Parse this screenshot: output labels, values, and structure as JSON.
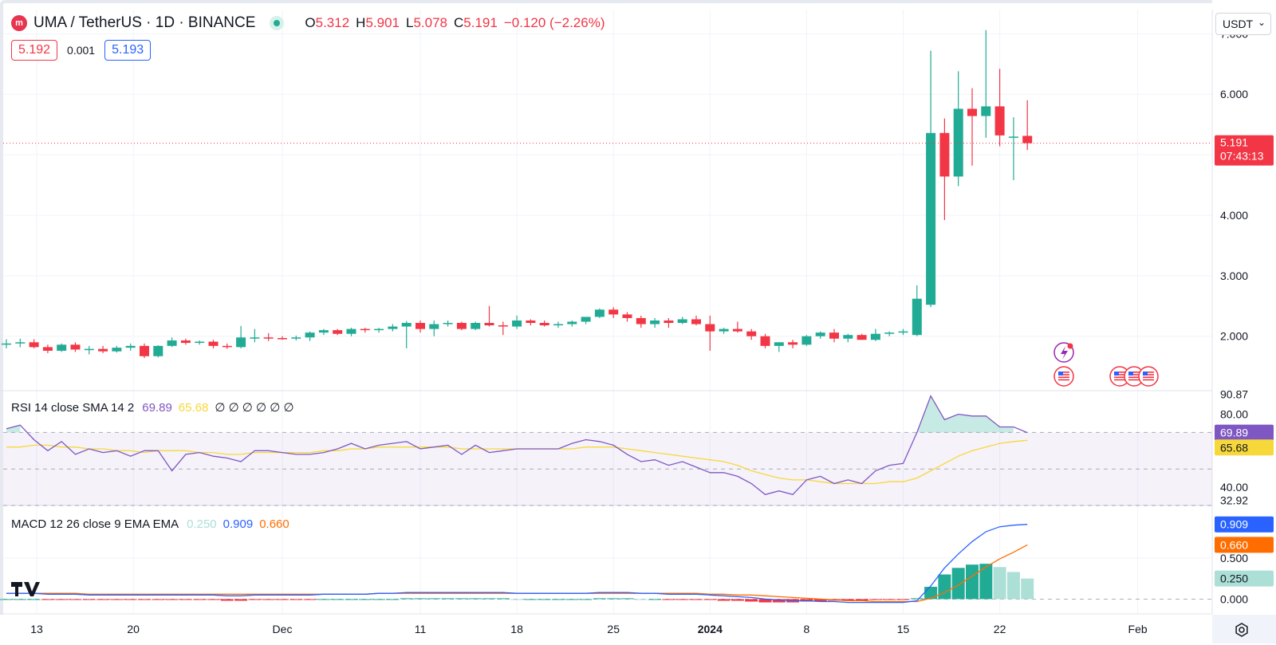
{
  "header": {
    "symbol": "UMA / TetherUS · 1D · BINANCE",
    "ohlc": [
      {
        "label": "O",
        "value": "5.312"
      },
      {
        "label": "H",
        "value": "5.901"
      },
      {
        "label": "L",
        "value": "5.078"
      },
      {
        "label": "C",
        "value": "5.191"
      }
    ],
    "change": "−0.120 (−2.26%)",
    "sell_price": "5.192",
    "spread": "0.001",
    "buy_price": "5.193",
    "currency": "USDT",
    "logo_icon": "uma-logo-icon"
  },
  "colors": {
    "up": "#22ab94",
    "down": "#f23645",
    "rsi": "#7e57c2",
    "rsi_sma": "#f7d83a",
    "macd": "#2962ff",
    "signal": "#ff6d00",
    "hist_pos": "#22ab94",
    "hist_pos_weak": "#acdfd6",
    "hist_neg": "#f23645"
  },
  "rsi": {
    "label": "RSI 14 close SMA 14 2",
    "value": "69.89",
    "sma_value": "65.68",
    "placeholders": "∅ ∅ ∅ ∅ ∅ ∅"
  },
  "macd": {
    "label": "MACD 12 26 close 9 EMA EMA",
    "hist_value": "0.250",
    "macd_value": "0.909",
    "signal_value": "0.660"
  },
  "chart_data": [
    {
      "type": "candlestick",
      "ylim": [
        1.1,
        7.4
      ],
      "y_ticks": [
        "7.000",
        "6.000",
        "5.000",
        "4.000",
        "3.000",
        "2.000"
      ],
      "x_ticks": [
        "13",
        "20",
        "Dec",
        "11",
        "18",
        "25",
        "2024",
        "8",
        "15",
        "22",
        "Feb"
      ],
      "last_price": "5.191",
      "countdown": "07:43:13",
      "candles": [
        [
          1.86,
          1.95,
          1.8,
          1.88
        ],
        [
          1.88,
          1.96,
          1.82,
          1.9
        ],
        [
          1.9,
          1.95,
          1.8,
          1.82
        ],
        [
          1.82,
          1.86,
          1.72,
          1.76
        ],
        [
          1.76,
          1.88,
          1.74,
          1.86
        ],
        [
          1.86,
          1.9,
          1.74,
          1.78
        ],
        [
          1.78,
          1.84,
          1.7,
          1.79
        ],
        [
          1.79,
          1.84,
          1.72,
          1.75
        ],
        [
          1.75,
          1.84,
          1.73,
          1.81
        ],
        [
          1.81,
          1.88,
          1.76,
          1.84
        ],
        [
          1.84,
          1.88,
          1.64,
          1.67
        ],
        [
          1.67,
          1.85,
          1.65,
          1.84
        ],
        [
          1.84,
          1.98,
          1.82,
          1.93
        ],
        [
          1.93,
          1.96,
          1.86,
          1.89
        ],
        [
          1.89,
          1.93,
          1.86,
          1.91
        ],
        [
          1.91,
          1.94,
          1.8,
          1.84
        ],
        [
          1.84,
          1.88,
          1.79,
          1.82
        ],
        [
          1.82,
          2.17,
          1.8,
          1.98
        ],
        [
          1.98,
          2.12,
          1.9,
          1.98
        ],
        [
          1.98,
          2.05,
          1.92,
          1.97
        ],
        [
          1.97,
          2.0,
          1.94,
          1.96
        ],
        [
          1.96,
          2.01,
          1.93,
          1.98
        ],
        [
          1.98,
          2.08,
          1.92,
          2.06
        ],
        [
          2.06,
          2.12,
          2.02,
          2.1
        ],
        [
          2.1,
          2.12,
          2.02,
          2.04
        ],
        [
          2.04,
          2.14,
          2.0,
          2.12
        ],
        [
          2.12,
          2.14,
          2.06,
          2.1
        ],
        [
          2.1,
          2.14,
          2.06,
          2.12
        ],
        [
          2.12,
          2.2,
          2.08,
          2.16
        ],
        [
          2.16,
          2.25,
          1.8,
          2.22
        ],
        [
          2.22,
          2.26,
          2.06,
          2.12
        ],
        [
          2.12,
          2.26,
          2.0,
          2.2
        ],
        [
          2.2,
          2.26,
          2.16,
          2.22
        ],
        [
          2.22,
          2.24,
          2.1,
          2.12
        ],
        [
          2.12,
          2.24,
          2.1,
          2.22
        ],
        [
          2.22,
          2.5,
          2.16,
          2.18
        ],
        [
          2.18,
          2.24,
          2.02,
          2.16
        ],
        [
          2.16,
          2.34,
          2.12,
          2.26
        ],
        [
          2.26,
          2.28,
          2.18,
          2.22
        ],
        [
          2.22,
          2.26,
          2.16,
          2.18
        ],
        [
          2.18,
          2.24,
          2.14,
          2.2
        ],
        [
          2.2,
          2.26,
          2.16,
          2.24
        ],
        [
          2.24,
          2.32,
          2.2,
          2.32
        ],
        [
          2.32,
          2.46,
          2.3,
          2.44
        ],
        [
          2.44,
          2.48,
          2.3,
          2.36
        ],
        [
          2.36,
          2.4,
          2.24,
          2.3
        ],
        [
          2.3,
          2.34,
          2.14,
          2.2
        ],
        [
          2.2,
          2.3,
          2.14,
          2.26
        ],
        [
          2.26,
          2.3,
          2.14,
          2.22
        ],
        [
          2.22,
          2.32,
          2.2,
          2.28
        ],
        [
          2.28,
          2.34,
          2.18,
          2.2
        ],
        [
          2.2,
          2.34,
          1.76,
          2.08
        ],
        [
          2.08,
          2.14,
          2.04,
          2.12
        ],
        [
          2.12,
          2.24,
          2.06,
          2.08
        ],
        [
          2.08,
          2.12,
          1.94,
          2.0
        ],
        [
          2.0,
          2.04,
          1.8,
          1.84
        ],
        [
          1.84,
          1.9,
          1.74,
          1.9
        ],
        [
          1.9,
          1.94,
          1.8,
          1.86
        ],
        [
          1.86,
          2.02,
          1.84,
          2.0
        ],
        [
          2.0,
          2.08,
          1.96,
          2.06
        ],
        [
          2.06,
          2.12,
          1.9,
          1.96
        ],
        [
          1.96,
          2.04,
          1.9,
          2.02
        ],
        [
          2.02,
          2.04,
          1.94,
          1.94
        ],
        [
          1.94,
          2.12,
          1.92,
          2.04
        ],
        [
          2.04,
          2.08,
          2.0,
          2.06
        ],
        [
          2.06,
          2.12,
          2.02,
          2.08
        ],
        [
          2.02,
          2.84,
          2.0,
          2.62
        ],
        [
          2.52,
          6.72,
          2.48,
          5.36
        ],
        [
          5.36,
          5.6,
          3.92,
          4.64
        ],
        [
          4.64,
          6.38,
          4.48,
          5.76
        ],
        [
          5.76,
          6.1,
          4.82,
          5.64
        ],
        [
          5.64,
          7.06,
          5.28,
          5.8
        ],
        [
          5.8,
          6.42,
          5.14,
          5.32
        ],
        [
          5.3,
          5.62,
          4.58,
          5.3
        ],
        [
          5.312,
          5.901,
          5.078,
          5.191
        ]
      ]
    },
    {
      "type": "line",
      "title": "RSI 14 close SMA 14 2",
      "ylim": [
        30,
        92
      ],
      "y_ticks": [
        "90.87",
        "80.00",
        "40.00",
        "32.92"
      ],
      "bands": [
        70,
        50,
        30
      ],
      "series": [
        {
          "name": "RSI",
          "values": [
            72,
            74,
            66,
            60,
            65,
            58,
            61,
            59,
            60,
            57,
            60,
            60,
            49,
            58,
            59,
            57,
            56,
            54,
            60,
            60,
            59,
            58,
            58,
            59,
            61,
            64,
            61,
            63,
            64,
            65,
            61,
            62,
            63,
            58,
            63,
            59,
            60,
            61,
            61,
            61,
            61,
            64,
            66,
            65,
            63,
            58,
            54,
            55,
            52,
            54,
            51,
            48,
            48,
            46,
            42,
            36,
            38,
            36,
            44,
            46,
            42,
            44,
            42,
            49,
            52,
            53,
            70,
            90,
            77,
            80,
            79,
            79,
            73,
            73,
            69.89
          ]
        },
        {
          "name": "RSI-based MA",
          "values": [
            62,
            62,
            63,
            63,
            62,
            62,
            61,
            61,
            60,
            60,
            59,
            60,
            60,
            60,
            59,
            59,
            58,
            58,
            59,
            59,
            59,
            59,
            59,
            60,
            60,
            61,
            61,
            62,
            62,
            62,
            62,
            62,
            62,
            61,
            61,
            61,
            61,
            61,
            61,
            61,
            61,
            61,
            62,
            62,
            62,
            61,
            60,
            59,
            58,
            57,
            56,
            55,
            54,
            52,
            49,
            47,
            45,
            44,
            44,
            43,
            42,
            42,
            42,
            42,
            43,
            43,
            45,
            49,
            53,
            57,
            60,
            62,
            64,
            65,
            65.68
          ]
        }
      ]
    },
    {
      "type": "line",
      "title": "MACD 12 26 close 9 EMA EMA",
      "ylim": [
        -0.18,
        1.12
      ],
      "y_ticks": [
        "0.500",
        "0.000"
      ],
      "series": [
        {
          "name": "MACD",
          "values": [
            0.07,
            0.07,
            0.07,
            0.06,
            0.06,
            0.06,
            0.05,
            0.05,
            0.05,
            0.05,
            0.05,
            0.05,
            0.05,
            0.05,
            0.05,
            0.05,
            0.04,
            0.04,
            0.05,
            0.05,
            0.05,
            0.05,
            0.05,
            0.06,
            0.06,
            0.06,
            0.06,
            0.07,
            0.07,
            0.08,
            0.08,
            0.08,
            0.08,
            0.08,
            0.08,
            0.08,
            0.08,
            0.07,
            0.07,
            0.07,
            0.07,
            0.07,
            0.07,
            0.08,
            0.08,
            0.08,
            0.07,
            0.07,
            0.06,
            0.06,
            0.06,
            0.05,
            0.04,
            0.03,
            0.02,
            0.0,
            -0.01,
            -0.02,
            -0.02,
            -0.03,
            -0.03,
            -0.04,
            -0.04,
            -0.04,
            -0.04,
            -0.04,
            -0.02,
            0.16,
            0.38,
            0.55,
            0.7,
            0.82,
            0.88,
            0.9,
            0.909
          ]
        },
        {
          "name": "Signal",
          "values": [
            0.07,
            0.07,
            0.07,
            0.07,
            0.07,
            0.07,
            0.06,
            0.06,
            0.06,
            0.06,
            0.06,
            0.06,
            0.06,
            0.06,
            0.06,
            0.06,
            0.06,
            0.06,
            0.06,
            0.06,
            0.06,
            0.06,
            0.06,
            0.06,
            0.06,
            0.06,
            0.06,
            0.07,
            0.07,
            0.07,
            0.07,
            0.07,
            0.07,
            0.07,
            0.07,
            0.07,
            0.07,
            0.07,
            0.07,
            0.07,
            0.07,
            0.07,
            0.07,
            0.07,
            0.07,
            0.07,
            0.07,
            0.07,
            0.07,
            0.07,
            0.07,
            0.06,
            0.06,
            0.05,
            0.05,
            0.04,
            0.03,
            0.02,
            0.01,
            0.0,
            -0.01,
            -0.02,
            -0.02,
            -0.03,
            -0.03,
            -0.03,
            -0.03,
            0.01,
            0.08,
            0.17,
            0.28,
            0.39,
            0.49,
            0.57,
            0.66
          ]
        },
        {
          "name": "Histogram",
          "values": [
            0.0,
            0.0,
            0.0,
            -0.01,
            -0.01,
            -0.01,
            -0.01,
            -0.01,
            -0.01,
            -0.01,
            -0.01,
            -0.01,
            -0.01,
            -0.01,
            -0.01,
            -0.01,
            -0.02,
            -0.02,
            -0.01,
            -0.01,
            -0.01,
            -0.01,
            -0.01,
            0.0,
            0.0,
            0.0,
            0.0,
            0.0,
            0.0,
            0.01,
            0.01,
            0.01,
            0.01,
            0.01,
            0.01,
            0.01,
            0.01,
            0.0,
            0.0,
            0.0,
            0.0,
            0.0,
            0.0,
            0.01,
            0.01,
            0.01,
            0.0,
            0.0,
            -0.01,
            -0.01,
            -0.01,
            -0.01,
            -0.02,
            -0.02,
            -0.03,
            -0.04,
            -0.04,
            -0.04,
            -0.03,
            -0.03,
            -0.02,
            -0.02,
            -0.02,
            -0.01,
            -0.01,
            -0.01,
            0.01,
            0.15,
            0.3,
            0.38,
            0.42,
            0.43,
            0.39,
            0.33,
            0.25
          ]
        }
      ]
    }
  ]
}
